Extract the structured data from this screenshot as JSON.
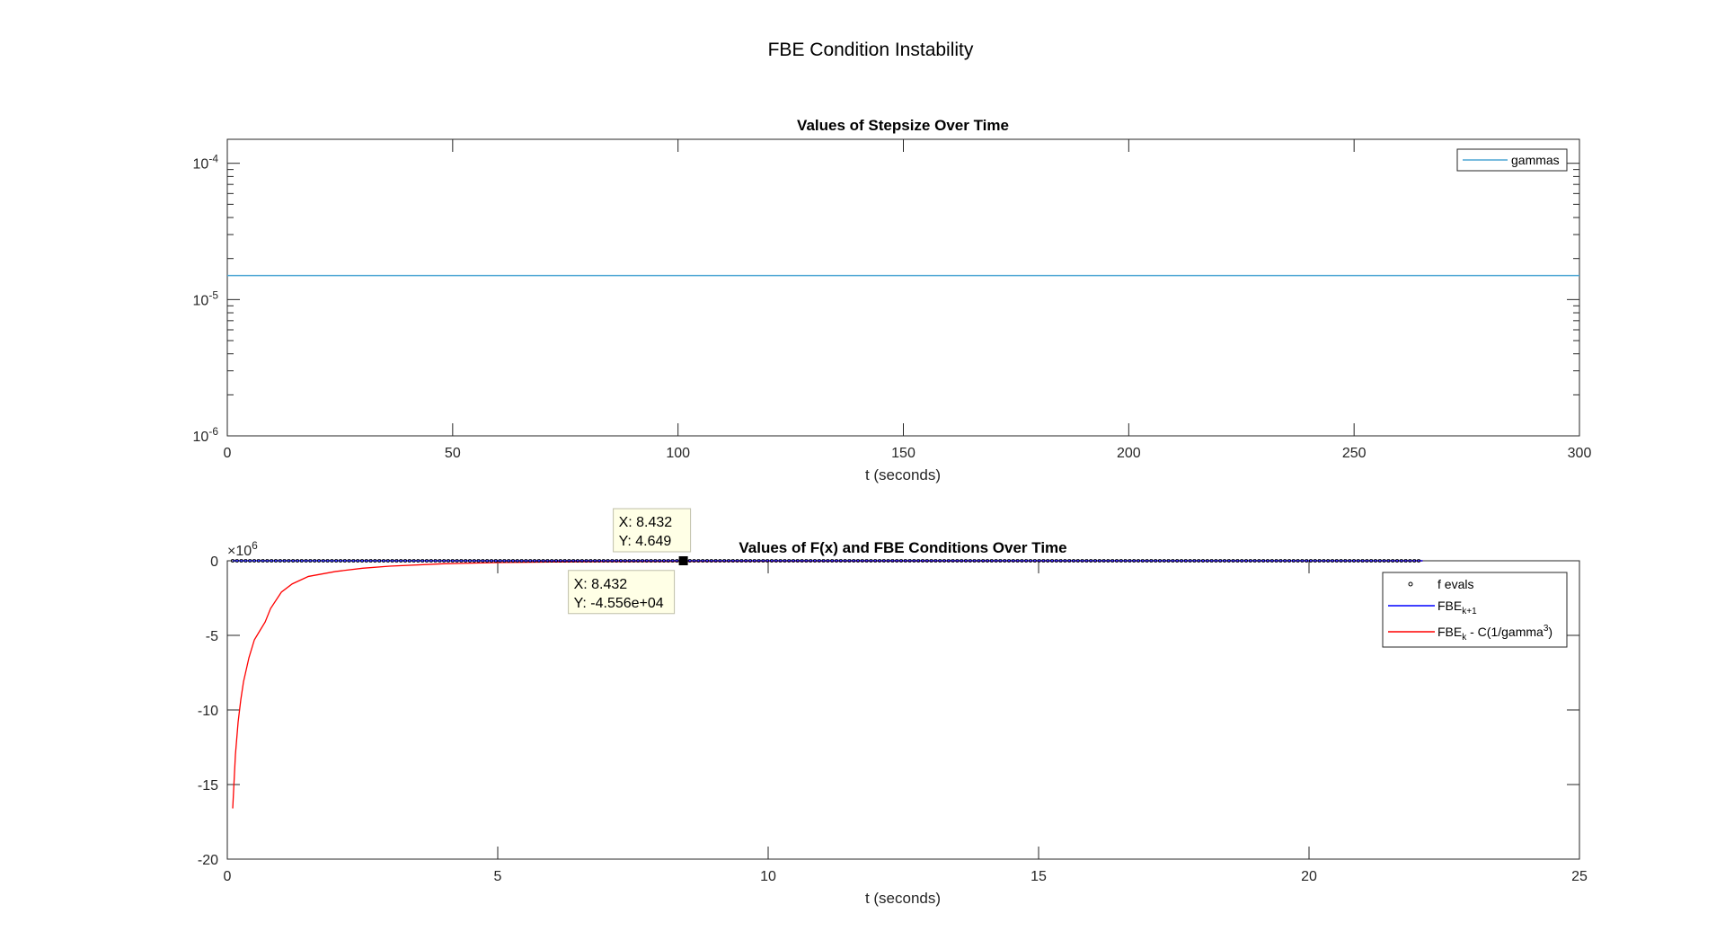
{
  "figure": {
    "title": "FBE Condition Instability"
  },
  "chart_data": [
    {
      "type": "line",
      "title": "Values of Stepsize Over Time",
      "xlabel": "t (seconds)",
      "ylabel": "",
      "xlim": [
        0,
        300
      ],
      "ylim": [
        1e-06,
        0.00015
      ],
      "yscale": "log",
      "xticks": [
        0,
        50,
        100,
        150,
        200,
        250,
        300
      ],
      "yticks": [
        {
          "value": 1e-06,
          "base": "10",
          "exp": "-6"
        },
        {
          "value": 1e-05,
          "base": "10",
          "exp": "-5"
        },
        {
          "value": 0.0001,
          "base": "10",
          "exp": "-4"
        }
      ],
      "grid": false,
      "legend_position": "top-right",
      "series": [
        {
          "name": "gammas",
          "color": "#4DA6D4",
          "x": [
            0,
            300
          ],
          "y": [
            1.5e-05,
            1.5e-05
          ]
        }
      ]
    },
    {
      "type": "line",
      "title": "Values of F(x) and FBE Conditions Over Time",
      "xlabel": "t (seconds)",
      "ylabel": "",
      "xlim": [
        0,
        25
      ],
      "ylim": [
        -20,
        0
      ],
      "y_exponent_label": {
        "base": "×10",
        "exp": "6"
      },
      "xticks": [
        0,
        5,
        10,
        15,
        20,
        25
      ],
      "yticks": [
        0,
        -5,
        -10,
        -15,
        -20
      ],
      "grid": false,
      "legend_position": "top-right",
      "series": [
        {
          "name": "f evals",
          "marker": "circle",
          "color": "#000000",
          "x_start": 0.1,
          "x_end": 22.1,
          "y_value": 4.6e-06
        },
        {
          "name": "FBE",
          "sub": "k+1",
          "color": "#0000FF",
          "x_start": 0.1,
          "x_end": 22.1,
          "y_value": 0.0
        },
        {
          "name": "FBE",
          "sub": "k",
          "suffix_pre": " - C(1/gamma",
          "sup": "3",
          "suffix_post": ")",
          "color": "#FF0000",
          "x": [
            0.1,
            0.15,
            0.2,
            0.25,
            0.3,
            0.4,
            0.5,
            0.6,
            0.7,
            0.8,
            1.0,
            1.2,
            1.5,
            2.0,
            2.5,
            3.0,
            4.0,
            5.0,
            6.0,
            7.0,
            8.0,
            8.432,
            10,
            12,
            15,
            18,
            22.1
          ],
          "y": [
            -16.6,
            -13.0,
            -10.8,
            -9.3,
            -8.1,
            -6.5,
            -5.3,
            -4.7,
            -4.1,
            -3.2,
            -2.1,
            -1.55,
            -1.05,
            -0.72,
            -0.5,
            -0.36,
            -0.2,
            -0.12,
            -0.08,
            -0.055,
            -0.048,
            -0.04556,
            -0.03,
            -0.02,
            -0.012,
            -0.008,
            -0.005
          ]
        }
      ],
      "datatips": [
        {
          "x_label": "X: 8.432",
          "y_label": "Y: 4.649",
          "x": 8.432,
          "y": 4.6e-06,
          "placement": "above"
        },
        {
          "x_label": "X: 8.432",
          "y_label": "Y: -4.556e+04",
          "x": 8.432,
          "y": -0.04556,
          "placement": "below"
        }
      ]
    }
  ]
}
